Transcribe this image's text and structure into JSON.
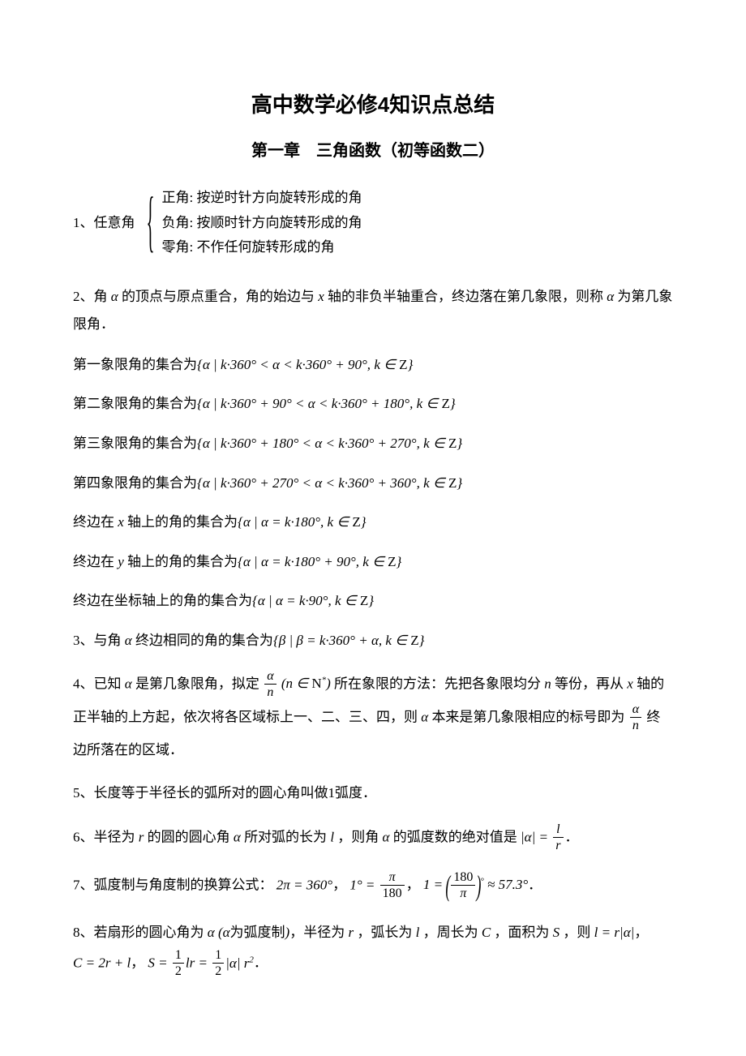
{
  "title": "高中数学必修4知识点总结",
  "subtitle": "第一章　三角函数（初等函数二）",
  "item1": {
    "head": "1、任意角",
    "lines": [
      "正角: 按逆时针方向旋转形成的角",
      "负角: 按顺时针方向旋转形成的角",
      "零角: 不作任何旋转形成的角"
    ]
  },
  "item2": "2、角 α 的顶点与原点重合，角的始边与 x 轴的非负半轴重合，终边落在第几象限，则称 α 为第几象限角．",
  "sets": {
    "q1_label": "第一象限角的集合为",
    "q1_math": "{α | k·360° < α < k·360° + 90°, k ∈ Z}",
    "q2_label": "第二象限角的集合为",
    "q2_math": "{α | k·360° + 90° < α < k·360° + 180°, k ∈ Z}",
    "q3_label": "第三象限角的集合为",
    "q3_math": "{α | k·360° + 180° < α < k·360° + 270°, k ∈ Z}",
    "q4_label": "第四象限角的集合为",
    "q4_math": "{α | k·360° + 270° < α < k·360° + 360°, k ∈ Z}",
    "xaxis_label": "终边在 x 轴上的角的集合为",
    "xaxis_math": "{α | α = k·180°, k ∈ Z}",
    "yaxis_label": "终边在 y 轴上的角的集合为",
    "yaxis_math": "{α | α = k·180° + 90°, k ∈ Z}",
    "coord_label": "终边在坐标轴上的角的集合为",
    "coord_math": "{α | α = k·90°, k ∈ Z}"
  },
  "item3": {
    "label": "3、与角 α 终边相同的角的集合为",
    "math": "{β | β = k·360° + α, k ∈ Z}"
  },
  "item4": {
    "part1": "4、已知 α 是第几象限角，拟定",
    "part2": "所在象限的方法：先把各象限均分 n 等份，",
    "part3": "再从 x 轴的正半轴的上方起，依次将各区域标上一、二、三、四，则 α 本来是第几象",
    "part4": "限相应的标号即为",
    "part5": "终边所落在的区域．",
    "frac_num": "α",
    "frac_den": "n",
    "paren": "(n ∈ N*)"
  },
  "item5": "5、长度等于半径长的弧所对的圆心角叫做1弧度．",
  "item6": {
    "text": "6、半径为 r 的圆的圆心角 α 所对弧的长为 l ，则角 α 的弧度数的绝对值是",
    "eq_lhs": "|α| =",
    "frac_num": "l",
    "frac_den": "r",
    "end": "．"
  },
  "item7": {
    "text": "7、弧度制与角度制的换算公式：",
    "f1": "2π = 360°，",
    "f2a": "1° =",
    "f2_num": "π",
    "f2_den": "180",
    "f3a": "，  1 =",
    "f3_num": "180",
    "f3_den": "π",
    "f3b": "≈ 57.3°．"
  },
  "item8": {
    "line1": "8、若扇形的圆心角为 α (α为弧度制)，半径为 r ，弧长为 l ，周长为 C ，面积为 S ，则",
    "l1": "l = r|α|，",
    "l2": "C = 2r + l，",
    "l3a": "S =",
    "l3_num1": "1",
    "l3_den1": "2",
    "l3_mid": "lr =",
    "l3_num2": "1",
    "l3_den2": "2",
    "l3_end": "|α| r²．"
  },
  "style": {
    "background_color": "#ffffff",
    "text_color": "#000000",
    "title_fontsize": 26,
    "subtitle_fontsize": 20,
    "body_fontsize": 17,
    "font_family_cn": "SimSun",
    "font_family_heading": "SimHei",
    "font_family_math": "Times New Roman"
  }
}
